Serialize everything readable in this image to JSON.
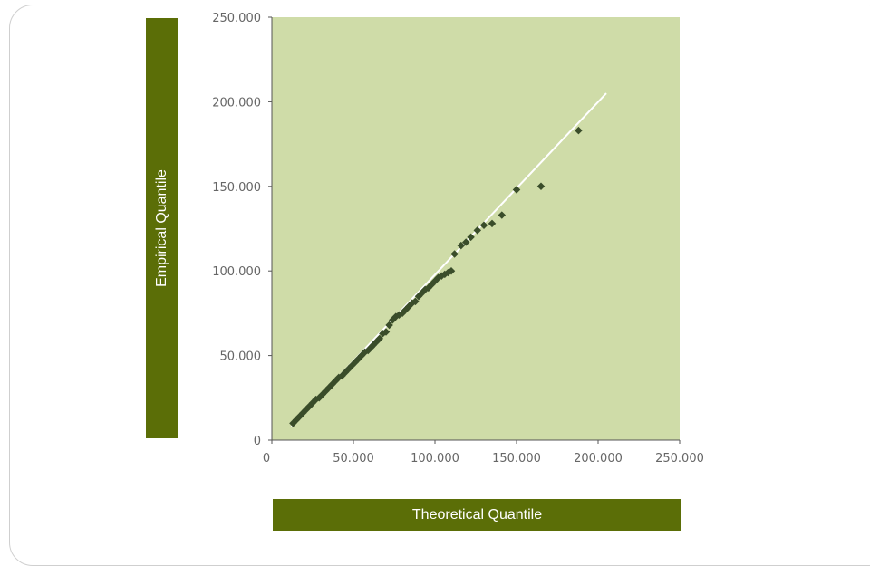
{
  "chart_data": {
    "type": "scatter",
    "xlabel": "Theoretical Quantile",
    "ylabel": "Empirical Quantile",
    "xlim": [
      0,
      250000
    ],
    "ylim": [
      0,
      250000
    ],
    "x_ticks": [
      0,
      50000,
      100000,
      150000,
      200000,
      250000
    ],
    "y_ticks": [
      0,
      50000,
      100000,
      150000,
      200000,
      250000
    ],
    "x_tick_labels": [
      "0",
      "50.000",
      "100.000",
      "150.000",
      "200.000",
      "250.000"
    ],
    "y_tick_labels": [
      "0",
      "50.000",
      "100.000",
      "150.000",
      "200.000",
      "250.000"
    ],
    "grid": false,
    "legend": "none",
    "plot_background": "#cfdca8",
    "marker_color": "#3a4d2a",
    "reference_line": {
      "color": "#ffffff",
      "x": [
        12000,
        205000
      ],
      "y": [
        8000,
        205000
      ]
    },
    "series": [
      {
        "x": [
          13000,
          15000,
          17000,
          19000,
          21000,
          23000,
          25000,
          27000,
          29000,
          31000,
          33000,
          35000,
          37000,
          39000,
          41000,
          43000,
          45000,
          47000,
          49000,
          51000,
          53000,
          55000,
          57000,
          59000,
          61000,
          62000,
          64000,
          66000,
          68000,
          70000,
          72000,
          74000,
          76000,
          78000,
          80000,
          82000,
          84000,
          86000,
          88000,
          90000,
          92000,
          94000,
          96000,
          98000,
          100000,
          102000,
          104000,
          106000,
          108000,
          110000,
          112000,
          116000,
          119000,
          122000,
          126000,
          130000,
          135000,
          141000,
          150000,
          165000,
          188000
        ],
        "y": [
          10000,
          12000,
          14000,
          16000,
          18000,
          20000,
          22000,
          24000,
          25000,
          27000,
          29000,
          31000,
          33000,
          35000,
          37000,
          38000,
          40000,
          42000,
          44000,
          46000,
          48000,
          50000,
          52000,
          53000,
          55000,
          56000,
          58000,
          60000,
          63000,
          64000,
          68000,
          71000,
          73000,
          74000,
          75000,
          77000,
          79000,
          81000,
          82000,
          85000,
          87000,
          89000,
          90000,
          92000,
          94000,
          96000,
          97000,
          98000,
          99000,
          100000,
          110000,
          115000,
          117000,
          120000,
          124000,
          127000,
          128000,
          133000,
          148000,
          150000,
          183000
        ]
      }
    ]
  }
}
